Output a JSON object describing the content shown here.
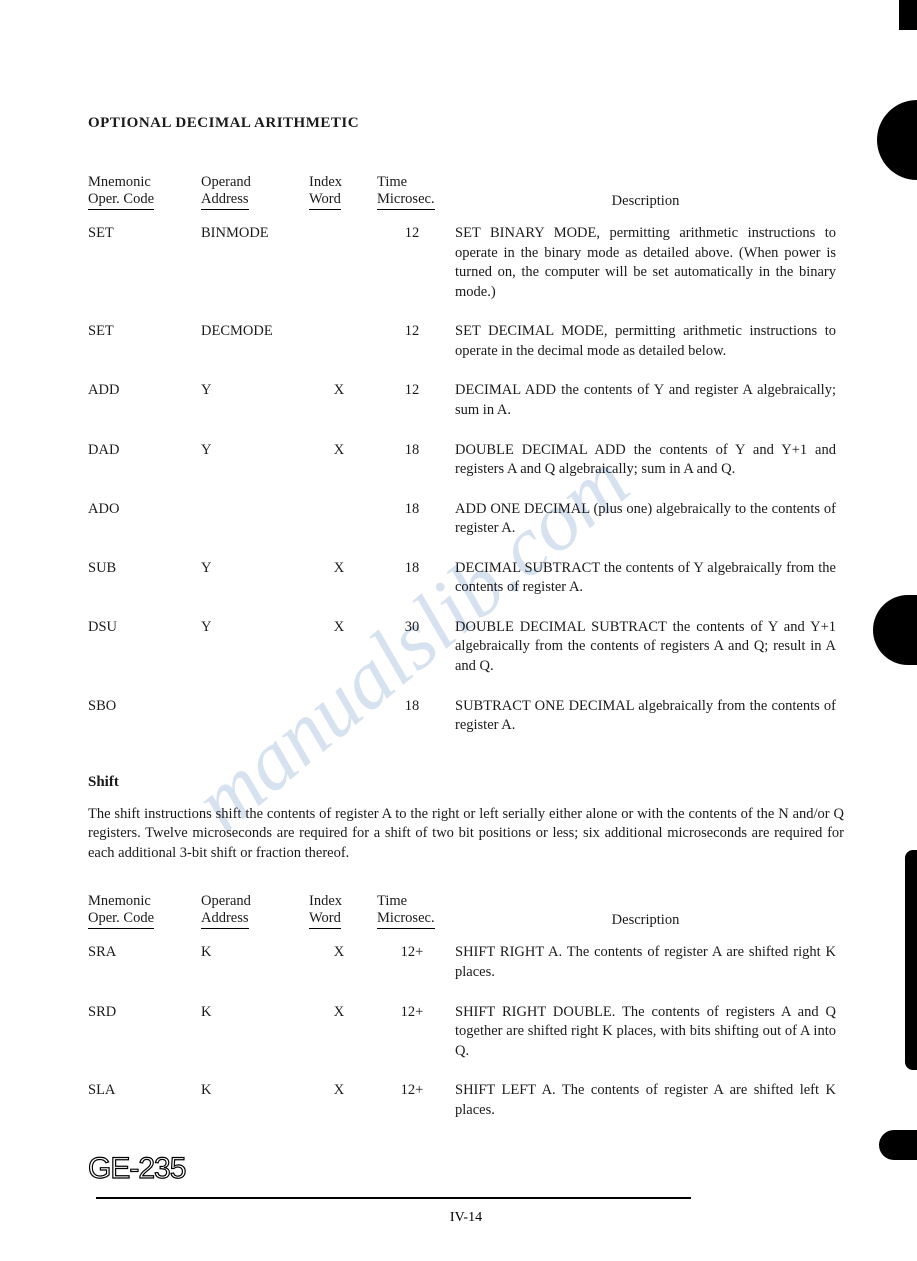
{
  "section_title": "OPTIONAL DECIMAL ARITHMETIC",
  "headers": {
    "mnemonic_l1": "Mnemonic",
    "mnemonic_l2": "Oper. Code",
    "operand_l1": "Operand",
    "operand_l2": "Address",
    "index_l1": "Index",
    "index_l2": "Word",
    "time_l1": "Time",
    "time_l2": "Microsec.",
    "description": "Description"
  },
  "table1": [
    {
      "mnem": "SET",
      "oper": "BINMODE",
      "idx": "",
      "time": "12",
      "desc": "SET BINARY MODE, permitting arithmetic instructions to operate in the binary mode as detailed above. (When power is turned on, the computer will be set automatically in the binary mode.)"
    },
    {
      "mnem": "SET",
      "oper": "DECMODE",
      "idx": "",
      "time": "12",
      "desc": "SET DECIMAL MODE, permitting arithmetic instructions to operate in the decimal mode as detailed below."
    },
    {
      "mnem": "ADD",
      "oper": "Y",
      "idx": "X",
      "time": "12",
      "desc": "DECIMAL ADD the contents of Y and register A algebraically; sum in A."
    },
    {
      "mnem": "DAD",
      "oper": "Y",
      "idx": "X",
      "time": "18",
      "desc": "DOUBLE DECIMAL ADD the contents of Y and Y+1 and registers A and Q algebraically; sum in A and Q."
    },
    {
      "mnem": "ADO",
      "oper": "",
      "idx": "",
      "time": "18",
      "desc": "ADD ONE DECIMAL (plus one) algebraically to the contents of register A."
    },
    {
      "mnem": "SUB",
      "oper": "Y",
      "idx": "X",
      "time": "18",
      "desc": "DECIMAL SUBTRACT the contents of Y algebraically from the contents of register A."
    },
    {
      "mnem": "DSU",
      "oper": "Y",
      "idx": "X",
      "time": "30",
      "desc": "DOUBLE DECIMAL SUBTRACT the contents of Y and Y+1 algebraically from the contents of registers A and Q; result in A and Q."
    },
    {
      "mnem": "SBO",
      "oper": "",
      "idx": "",
      "time": "18",
      "desc": "SUBTRACT ONE DECIMAL algebraically from the contents of register A."
    }
  ],
  "shift_title": "Shift",
  "shift_para": "The shift instructions shift the contents of register A to the right or left serially either alone or with the contents of the N and/or Q registers. Twelve microseconds are required for a shift of two bit positions or less; six additional microseconds are required for each additional 3-bit shift or fraction thereof.",
  "table2": [
    {
      "mnem": "SRA",
      "oper": "K",
      "idx": "X",
      "time": "12+",
      "desc": "SHIFT RIGHT A.  The contents of register A are shifted right K places."
    },
    {
      "mnem": "SRD",
      "oper": "K",
      "idx": "X",
      "time": "12+",
      "desc": "SHIFT RIGHT DOUBLE. The contents of registers A and Q together are shifted right K places, with bits shifting out of A into Q."
    },
    {
      "mnem": "SLA",
      "oper": "K",
      "idx": "X",
      "time": "12+",
      "desc": "SHIFT LEFT A.  The contents of register A are shifted left K places."
    }
  ],
  "logo_text": "GE-235",
  "page_number": "IV-14",
  "colors": {
    "text": "#1a1a1a",
    "watermark": "#4a7db8",
    "background": "#ffffff",
    "black": "#000000"
  }
}
